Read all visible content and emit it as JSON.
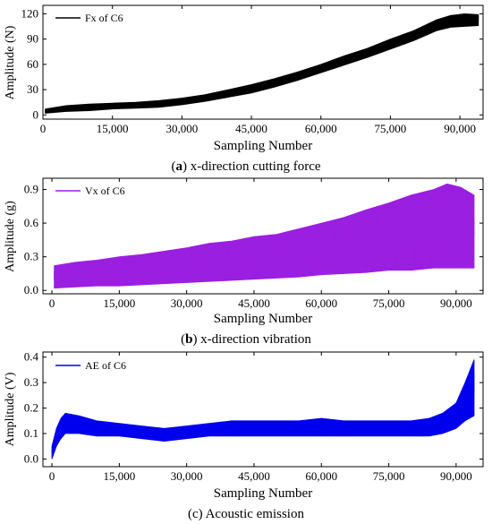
{
  "chart_data": [
    {
      "type": "line",
      "title": "",
      "caption_letter": "a",
      "caption_text": ") x-direction cutting force",
      "xlabel": "Sampling Number",
      "ylabel": "Amplitude (N)",
      "xlim": [
        0,
        95000
      ],
      "ylim": [
        -5,
        130
      ],
      "x_ticks": [
        0,
        15000,
        30000,
        45000,
        60000,
        75000,
        90000
      ],
      "x_tick_labels": [
        "0",
        "15,000",
        "30,000",
        "45,000",
        "60,000",
        "75,000",
        "90,000"
      ],
      "y_ticks": [
        0,
        30,
        60,
        90,
        120
      ],
      "y_tick_labels": [
        "0",
        "30",
        "60",
        "90",
        "120"
      ],
      "legend": "top-left",
      "color": "#000000",
      "series": [
        {
          "name": "Fx of C6",
          "x": [
            500,
            5000,
            10000,
            15000,
            20000,
            25000,
            30000,
            35000,
            40000,
            45000,
            50000,
            55000,
            60000,
            65000,
            70000,
            75000,
            80000,
            85000,
            88000,
            91000,
            94000
          ],
          "y_low": [
            2,
            4,
            5,
            7,
            8,
            9,
            12,
            16,
            21,
            26,
            33,
            41,
            50,
            59,
            68,
            78,
            88,
            100,
            104,
            105,
            106
          ],
          "y_high": [
            7,
            11,
            13,
            14,
            15,
            17,
            20,
            24,
            30,
            36,
            43,
            51,
            60,
            70,
            79,
            90,
            100,
            113,
            118,
            120,
            119
          ]
        }
      ]
    },
    {
      "type": "line",
      "title": "",
      "caption_letter": "b",
      "caption_text": ") x-direction vibration",
      "xlabel": "Sampling Number",
      "ylabel": "Amplitude (g)",
      "xlim": [
        -2000,
        96000
      ],
      "ylim": [
        -0.03,
        1.0
      ],
      "x_ticks": [
        0,
        15000,
        30000,
        45000,
        60000,
        75000,
        90000
      ],
      "x_tick_labels": [
        "0",
        "15,000",
        "30,000",
        "45,000",
        "60,000",
        "75,000",
        "90,000"
      ],
      "y_ticks": [
        0.0,
        0.3,
        0.6,
        0.9
      ],
      "y_tick_labels": [
        "0.0",
        "0.3",
        "0.6",
        "0.9"
      ],
      "legend": "top-left",
      "color": "#9b1fe0",
      "series": [
        {
          "name": "Vx of C6",
          "x": [
            500,
            5000,
            10000,
            15000,
            20000,
            25000,
            30000,
            35000,
            40000,
            45000,
            50000,
            55000,
            60000,
            65000,
            70000,
            75000,
            80000,
            85000,
            88000,
            91000,
            94000
          ],
          "y_low": [
            0.02,
            0.03,
            0.04,
            0.04,
            0.05,
            0.06,
            0.07,
            0.08,
            0.09,
            0.1,
            0.11,
            0.12,
            0.14,
            0.15,
            0.16,
            0.18,
            0.18,
            0.2,
            0.2,
            0.2,
            0.2
          ],
          "y_high": [
            0.22,
            0.25,
            0.27,
            0.3,
            0.32,
            0.35,
            0.38,
            0.42,
            0.44,
            0.48,
            0.5,
            0.55,
            0.6,
            0.65,
            0.72,
            0.78,
            0.85,
            0.9,
            0.95,
            0.92,
            0.85
          ]
        }
      ]
    },
    {
      "type": "line",
      "title": "",
      "caption_letter": "",
      "caption_text": "(c) Acoustic emission",
      "xlabel": "Sampling Number",
      "ylabel": "Amplitude (V)",
      "xlim": [
        -2000,
        96000
      ],
      "ylim": [
        -0.03,
        0.42
      ],
      "x_ticks": [
        0,
        15000,
        30000,
        45000,
        60000,
        75000,
        90000
      ],
      "x_tick_labels": [
        "0",
        "15,000",
        "30,000",
        "45,000",
        "60,000",
        "75,000",
        "90,000"
      ],
      "y_ticks": [
        0.0,
        0.1,
        0.2,
        0.3,
        0.4
      ],
      "y_tick_labels": [
        "0.0",
        "0.1",
        "0.2",
        "0.3",
        "0.4"
      ],
      "legend": "top-left",
      "color": "#0000ee",
      "series": [
        {
          "name": "AE of C6",
          "x": [
            0,
            1000,
            2000,
            3000,
            6000,
            10000,
            15000,
            20000,
            25000,
            30000,
            35000,
            40000,
            45000,
            50000,
            55000,
            60000,
            65000,
            70000,
            75000,
            80000,
            84000,
            87000,
            90000,
            92000,
            94000
          ],
          "y_low": [
            0.0,
            0.05,
            0.08,
            0.1,
            0.1,
            0.09,
            0.09,
            0.08,
            0.07,
            0.08,
            0.09,
            0.09,
            0.09,
            0.09,
            0.09,
            0.09,
            0.09,
            0.09,
            0.09,
            0.09,
            0.09,
            0.1,
            0.12,
            0.15,
            0.17
          ],
          "y_high": [
            0.05,
            0.12,
            0.16,
            0.18,
            0.17,
            0.15,
            0.14,
            0.13,
            0.12,
            0.13,
            0.14,
            0.15,
            0.15,
            0.15,
            0.15,
            0.16,
            0.15,
            0.15,
            0.15,
            0.15,
            0.16,
            0.18,
            0.22,
            0.3,
            0.39
          ]
        }
      ]
    }
  ]
}
